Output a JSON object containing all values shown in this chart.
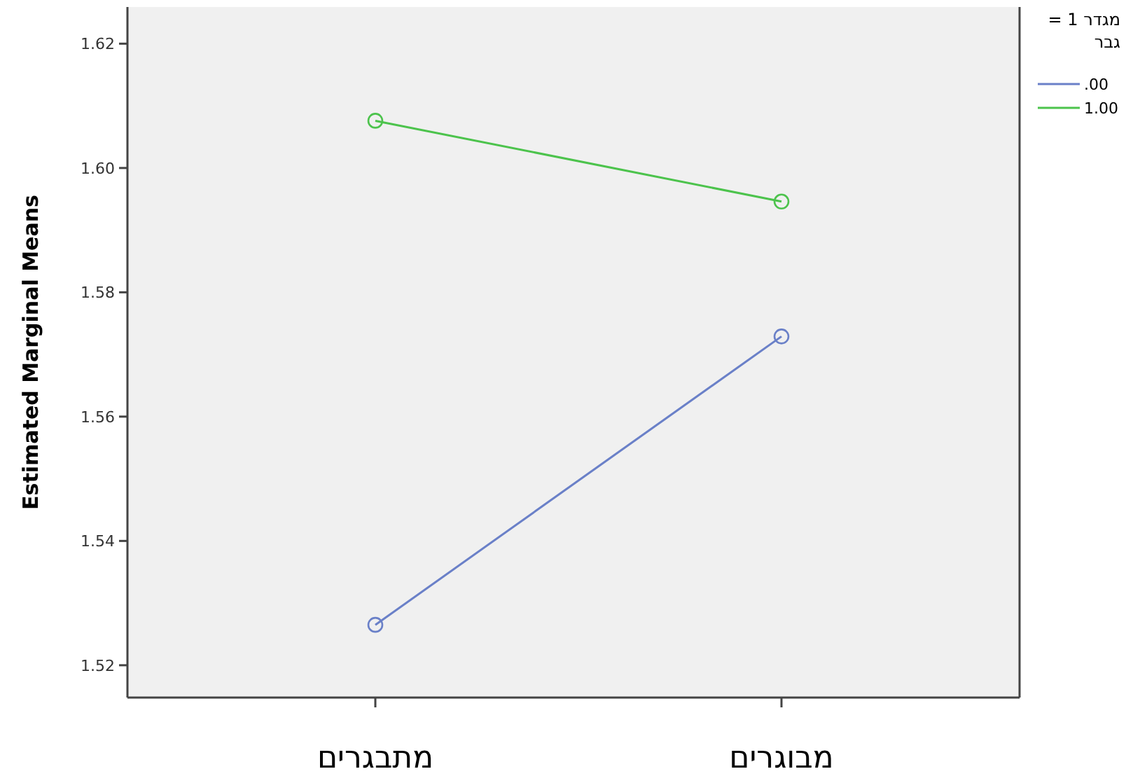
{
  "chart_data": {
    "type": "line",
    "ylabel": "Estimated Marginal Means",
    "legend_title": "מגדר 1 = גבר",
    "categories": [
      "מתבגרים",
      "מבוגרים"
    ],
    "series": [
      {
        "name": ".00",
        "color": "#6a80c8",
        "values": [
          1.5265,
          1.5729
        ]
      },
      {
        "name": "1.00",
        "color": "#4cc34c",
        "values": [
          1.6076,
          1.5946
        ]
      }
    ],
    "ylim": [
      1.5148,
      1.6259
    ],
    "yticks": [
      {
        "value": 1.52,
        "label": "1.52"
      },
      {
        "value": 1.54,
        "label": "1.54"
      },
      {
        "value": 1.56,
        "label": "1.56"
      },
      {
        "value": 1.58,
        "label": "1.58"
      },
      {
        "value": 1.6,
        "label": "1.60"
      },
      {
        "value": 1.62,
        "label": "1.62"
      }
    ],
    "marker": "circle",
    "legend": "right",
    "grid": false
  }
}
